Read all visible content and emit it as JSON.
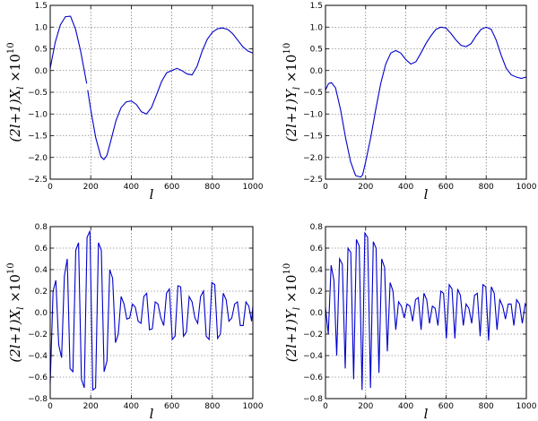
{
  "chart_data": [
    {
      "type": "line",
      "title": "",
      "xlabel": "l",
      "ylabel": {
        "main": "(2l+1)X",
        "sub": "l",
        "sep": " ×",
        "base": "10",
        "exp": "10"
      },
      "xlim": [
        0,
        1000
      ],
      "ylim": [
        -2.5,
        1.5
      ],
      "xticks": [
        0,
        200,
        400,
        600,
        800,
        1000
      ],
      "xtick_labels": [
        "0",
        "200",
        "400",
        "600",
        "800",
        "1000"
      ],
      "yticks": [
        -2.5,
        -2.0,
        -1.5,
        -1.0,
        -0.5,
        0.0,
        0.5,
        1.0,
        1.5
      ],
      "ytick_labels": [
        "−2.5",
        "−2.0",
        "−1.5",
        "−1.0",
        "−0.5",
        "0.0",
        "0.5",
        "1.0",
        "1.5"
      ],
      "grid": true,
      "series": [
        {
          "color": "#0000cc",
          "segments": [
            {
              "x": [
                0,
                25,
                50,
                75,
                100,
                125,
                150,
                180
              ],
              "y": [
                0.05,
                0.65,
                1.05,
                1.24,
                1.25,
                0.95,
                0.45,
                -0.3
              ]
            },
            {
              "x": [
                185,
                200,
                225,
                250,
                265,
                280,
                300,
                325,
                350,
                375,
                400,
                425,
                450,
                475,
                500,
                525,
                550,
                575,
                600,
                625,
                650,
                675,
                700,
                725,
                750,
                775,
                800,
                825,
                850,
                875,
                900,
                925,
                950,
                975,
                1000
              ],
              "y": [
                -0.45,
                -0.9,
                -1.55,
                -1.98,
                -2.05,
                -1.95,
                -1.6,
                -1.15,
                -0.85,
                -0.72,
                -0.7,
                -0.78,
                -0.95,
                -1.0,
                -0.85,
                -0.55,
                -0.25,
                -0.05,
                0.0,
                0.05,
                0.0,
                -0.08,
                -0.1,
                0.1,
                0.45,
                0.72,
                0.88,
                0.96,
                0.98,
                0.95,
                0.85,
                0.7,
                0.55,
                0.45,
                0.4
              ]
            }
          ]
        }
      ]
    },
    {
      "type": "line",
      "title": "",
      "xlabel": "l",
      "ylabel": {
        "main": "(2l+1)Y",
        "sub": "l",
        "sep": " ×",
        "base": "10",
        "exp": "10"
      },
      "xlim": [
        0,
        1000
      ],
      "ylim": [
        -2.5,
        1.5
      ],
      "xticks": [
        0,
        200,
        400,
        600,
        800,
        1000
      ],
      "xtick_labels": [
        "0",
        "200",
        "400",
        "600",
        "800",
        "1000"
      ],
      "yticks": [
        -2.5,
        -2.0,
        -1.5,
        -1.0,
        -0.5,
        0.0,
        0.5,
        1.0,
        1.5
      ],
      "ytick_labels": [
        "−2.5",
        "−2.0",
        "−1.5",
        "−1.0",
        "−0.5",
        "0.0",
        "0.5",
        "1.0",
        "1.5"
      ],
      "grid": true,
      "series": [
        {
          "color": "#0000cc",
          "segments": [
            {
              "x": [
                0,
                15,
                30,
                50,
                75,
                100,
                125,
                150,
                175,
                185,
                200,
                225,
                250,
                275,
                300,
                325,
                350,
                375,
                400,
                425,
                450,
                475,
                500,
                525,
                550,
                575,
                600,
                625,
                650,
                675,
                700,
                725,
                750,
                775,
                800,
                825,
                850,
                875,
                900,
                925,
                950,
                975,
                1000
              ],
              "y": [
                -0.45,
                -0.3,
                -0.28,
                -0.4,
                -0.9,
                -1.55,
                -2.1,
                -2.42,
                -2.45,
                -2.4,
                -2.1,
                -1.55,
                -0.9,
                -0.3,
                0.15,
                0.4,
                0.46,
                0.4,
                0.25,
                0.15,
                0.2,
                0.4,
                0.62,
                0.8,
                0.95,
                1.0,
                0.98,
                0.85,
                0.7,
                0.58,
                0.55,
                0.62,
                0.8,
                0.95,
                1.0,
                0.95,
                0.7,
                0.35,
                0.05,
                -0.1,
                -0.15,
                -0.18,
                -0.15
              ]
            }
          ]
        }
      ]
    },
    {
      "type": "line",
      "title": "",
      "xlabel": "l",
      "ylabel": {
        "main": "(2l+1)X",
        "sub": "l",
        "sep": " ×",
        "base": "10",
        "exp": "10"
      },
      "xlim": [
        0,
        1000
      ],
      "ylim": [
        -0.8,
        0.8
      ],
      "xticks": [
        0,
        200,
        400,
        600,
        800,
        1000
      ],
      "xtick_labels": [
        "0",
        "200",
        "400",
        "600",
        "800",
        "1000"
      ],
      "yticks": [
        -0.8,
        -0.6,
        -0.4,
        -0.2,
        0.0,
        0.2,
        0.4,
        0.6,
        0.8
      ],
      "ytick_labels": [
        "−0.8",
        "−0.6",
        "−0.4",
        "−0.2",
        "0.0",
        "0.2",
        "0.4",
        "0.6",
        "0.8"
      ],
      "grid": true,
      "series": [
        {
          "color": "#0000cc",
          "segments": [
            {
              "x": [
                0,
                14,
                28,
                42,
                56,
                70,
                84,
                98,
                112,
                126,
                140,
                154,
                168,
                182,
                196,
                210,
                224,
                238,
                252,
                266,
                280,
                294,
                308,
                322,
                336,
                350,
                364,
                378,
                392,
                406,
                420,
                434,
                448,
                462,
                476,
                490,
                504,
                518,
                532,
                546,
                560,
                574,
                588,
                602,
                616,
                630,
                644,
                658,
                672,
                686,
                700,
                714,
                728,
                742,
                756,
                770,
                784,
                798,
                812,
                826,
                840,
                854,
                868,
                882,
                896,
                910,
                924,
                938,
                952,
                966,
                980,
                994,
                1000
              ],
              "y": [
                -0.66,
                0.2,
                0.3,
                -0.3,
                -0.42,
                0.34,
                0.5,
                -0.52,
                -0.55,
                0.58,
                0.65,
                -0.62,
                -0.7,
                0.7,
                0.76,
                -0.72,
                -0.7,
                0.65,
                0.58,
                -0.55,
                -0.45,
                0.4,
                0.32,
                -0.28,
                -0.2,
                0.15,
                0.08,
                -0.06,
                -0.05,
                0.08,
                0.05,
                -0.08,
                -0.1,
                0.15,
                0.18,
                -0.16,
                -0.15,
                0.1,
                0.08,
                -0.05,
                -0.12,
                0.18,
                0.22,
                -0.25,
                -0.22,
                0.25,
                0.24,
                -0.22,
                -0.18,
                0.15,
                0.1,
                -0.05,
                -0.1,
                0.15,
                0.2,
                -0.22,
                -0.25,
                0.28,
                0.26,
                -0.24,
                -0.2,
                0.18,
                0.12,
                -0.08,
                -0.05,
                0.08,
                0.1,
                -0.12,
                -0.12,
                0.1,
                0.06,
                -0.08,
                0.06
              ]
            }
          ]
        }
      ]
    },
    {
      "type": "line",
      "title": "",
      "xlabel": "l",
      "ylabel": {
        "main": "(2l+1)Y",
        "sub": "l",
        "sep": " ×",
        "base": "10",
        "exp": "10"
      },
      "xlim": [
        0,
        1000
      ],
      "ylim": [
        -0.8,
        0.8
      ],
      "xticks": [
        0,
        200,
        400,
        600,
        800,
        1000
      ],
      "xtick_labels": [
        "0",
        "200",
        "400",
        "600",
        "800",
        "1000"
      ],
      "yticks": [
        -0.8,
        -0.6,
        -0.4,
        -0.2,
        0.0,
        0.2,
        0.4,
        0.6,
        0.8
      ],
      "ytick_labels": [
        "−0.8",
        "−0.6",
        "−0.4",
        "−0.2",
        "0.0",
        "0.2",
        "0.4",
        "0.6",
        "0.8"
      ],
      "grid": true,
      "series": [
        {
          "color": "#0000cc",
          "segments": [
            {
              "x": [
                0,
                14,
                28,
                42,
                56,
                70,
                84,
                98,
                112,
                126,
                140,
                154,
                168,
                182,
                196,
                210,
                224,
                238,
                252,
                266,
                280,
                294,
                308,
                322,
                336,
                350,
                364,
                378,
                392,
                406,
                420,
                434,
                448,
                462,
                476,
                490,
                504,
                518,
                532,
                546,
                560,
                574,
                588,
                602,
                616,
                630,
                644,
                658,
                672,
                686,
                700,
                714,
                728,
                742,
                756,
                770,
                784,
                798,
                812,
                826,
                840,
                854,
                868,
                882,
                896,
                910,
                924,
                938,
                952,
                966,
                980,
                994,
                1000
              ],
              "y": [
                0.05,
                -0.2,
                0.44,
                0.3,
                -0.4,
                0.5,
                0.45,
                -0.52,
                0.6,
                0.56,
                -0.62,
                0.68,
                0.62,
                -0.72,
                0.74,
                0.7,
                -0.7,
                0.66,
                0.6,
                -0.56,
                0.5,
                0.42,
                -0.36,
                0.28,
                0.2,
                -0.16,
                0.1,
                0.06,
                -0.05,
                0.08,
                0.06,
                -0.08,
                0.12,
                0.14,
                -0.16,
                0.18,
                0.12,
                -0.1,
                0.06,
                0.04,
                -0.12,
                0.2,
                0.18,
                -0.24,
                0.26,
                0.22,
                -0.24,
                0.22,
                0.16,
                -0.12,
                0.08,
                0.04,
                -0.1,
                0.16,
                0.18,
                -0.22,
                0.26,
                0.24,
                -0.26,
                0.24,
                0.18,
                -0.16,
                0.12,
                0.06,
                -0.06,
                0.08,
                0.08,
                -0.12,
                0.12,
                0.08,
                -0.1,
                0.08,
                0.06
              ]
            }
          ]
        }
      ]
    }
  ]
}
